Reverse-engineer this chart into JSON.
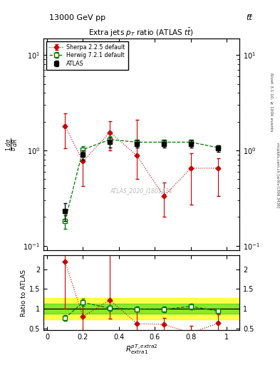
{
  "title_top": "13000 GeV pp",
  "title_top_right": "tt̅",
  "title_main": "Extra jets p$_T$ ratio (ATLAS t$\\bar{t}$bar)",
  "ylabel_main": "$\\frac{1}{\\sigma}\\frac{d\\sigma}{dR}$",
  "ylabel_ratio": "Ratio to ATLAS",
  "right_label_top": "Rivet 3.1.10, ≥ 100k events",
  "right_label_bot": "mcplots.cern.ch [arXiv:1306.3436]",
  "watermark": "ATLAS_2020_I1801434",
  "x_atlas": [
    0.1,
    0.2,
    0.35,
    0.5,
    0.65,
    0.8,
    0.95
  ],
  "y_atlas": [
    0.23,
    0.9,
    1.22,
    1.17,
    1.17,
    1.17,
    1.05
  ],
  "yerr_atlas_lo": [
    0.05,
    0.1,
    0.15,
    0.1,
    0.1,
    0.1,
    0.08
  ],
  "yerr_atlas_hi": [
    0.05,
    0.1,
    0.15,
    0.1,
    0.1,
    0.1,
    0.08
  ],
  "x_herwig": [
    0.1,
    0.2,
    0.35,
    0.5,
    0.65,
    0.8,
    0.95
  ],
  "y_herwig": [
    0.18,
    1.02,
    1.3,
    1.22,
    1.22,
    1.22,
    1.07
  ],
  "yerr_herwig_lo": [
    0.03,
    0.08,
    0.1,
    0.08,
    0.08,
    0.08,
    0.06
  ],
  "yerr_herwig_hi": [
    0.03,
    0.08,
    0.1,
    0.08,
    0.08,
    0.08,
    0.06
  ],
  "x_sherpa": [
    0.1,
    0.2,
    0.35,
    0.5,
    0.65,
    0.8,
    0.95
  ],
  "y_sherpa": [
    1.8,
    0.77,
    1.55,
    0.88,
    0.33,
    0.65,
    0.65
  ],
  "yerr_sherpa_lo": [
    0.75,
    0.35,
    0.55,
    0.38,
    0.13,
    0.38,
    0.32
  ],
  "yerr_sherpa_hi": [
    0.65,
    0.28,
    0.48,
    1.2,
    0.13,
    0.28,
    0.18
  ],
  "ratio_herwig": [
    0.76,
    1.16,
    1.01,
    0.99,
    0.98,
    1.06,
    0.94
  ],
  "ratio_herwig_err_lo": [
    0.07,
    0.09,
    0.07,
    0.07,
    0.07,
    0.07,
    0.05
  ],
  "ratio_herwig_err_hi": [
    0.07,
    0.09,
    0.07,
    0.07,
    0.07,
    0.07,
    0.05
  ],
  "ratio_sherpa": [
    2.2,
    0.8,
    1.22,
    0.62,
    0.6,
    0.38,
    0.63
  ],
  "ratio_sherpa_lo": [
    1.2,
    0.38,
    0.48,
    0.32,
    0.17,
    0.22,
    0.27
  ],
  "ratio_sherpa_hi": [
    1.2,
    0.32,
    1.15,
    0.32,
    0.17,
    0.18,
    0.22
  ],
  "green_band_lo": 0.87,
  "green_band_hi": 1.13,
  "yellow_band_lo": 0.72,
  "yellow_band_hi": 1.28,
  "color_atlas": "#000000",
  "color_herwig": "#007700",
  "color_sherpa": "#cc0000",
  "ylim_main": [
    0.09,
    15.0
  ],
  "ylim_ratio": [
    0.45,
    2.35
  ],
  "xlim": [
    -0.02,
    1.07
  ]
}
